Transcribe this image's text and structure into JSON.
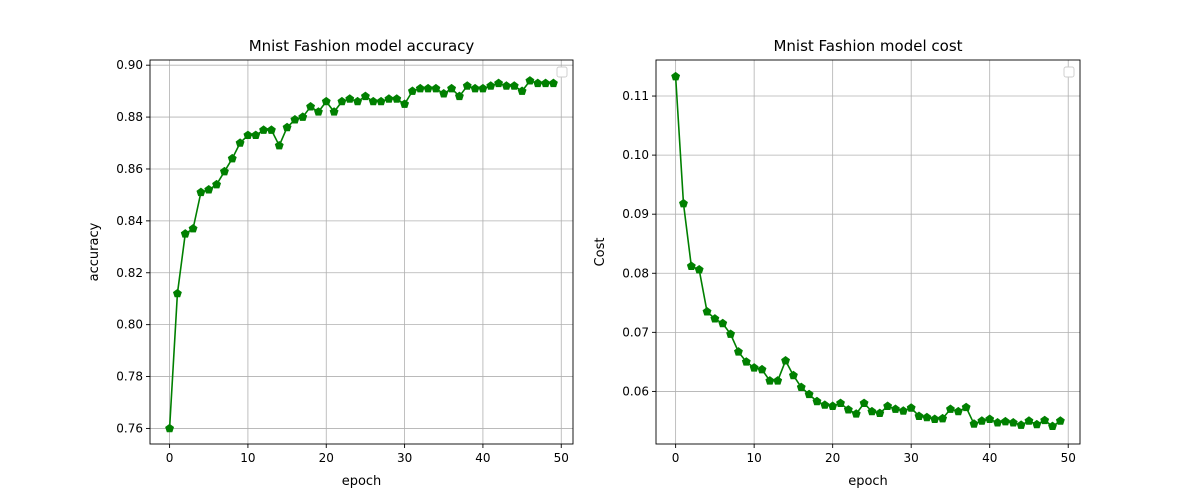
{
  "chart_data": [
    {
      "type": "line",
      "title": "Mnist Fashion model accuracy",
      "xlabel": "epoch",
      "ylabel": "accuracy",
      "xlim": [
        -2.5,
        51.5
      ],
      "ylim": [
        0.754,
        0.902
      ],
      "xticks": [
        0,
        10,
        20,
        30,
        40,
        50
      ],
      "yticks": [
        0.76,
        0.78,
        0.8,
        0.82,
        0.84,
        0.86,
        0.88,
        0.9
      ],
      "ytick_decimals": 2,
      "grid": true,
      "legend": "top-right",
      "marker": "pentagon",
      "color": "#008000",
      "series": [
        {
          "x": [
            0,
            1,
            2,
            3,
            4,
            5,
            6,
            7,
            8,
            9,
            10,
            11,
            12,
            13,
            14,
            15,
            16,
            17,
            18,
            19,
            20,
            21,
            22,
            23,
            24,
            25,
            26,
            27,
            28,
            29,
            30,
            31,
            32,
            33,
            34,
            35,
            36,
            37,
            38,
            39,
            40,
            41,
            42,
            43,
            44,
            45,
            46,
            47,
            48,
            49
          ],
          "values": [
            0.76,
            0.812,
            0.835,
            0.837,
            0.851,
            0.852,
            0.854,
            0.859,
            0.864,
            0.87,
            0.873,
            0.873,
            0.875,
            0.875,
            0.869,
            0.876,
            0.879,
            0.88,
            0.884,
            0.882,
            0.886,
            0.882,
            0.886,
            0.887,
            0.886,
            0.888,
            0.886,
            0.886,
            0.887,
            0.887,
            0.885,
            0.89,
            0.891,
            0.891,
            0.891,
            0.889,
            0.891,
            0.888,
            0.892,
            0.891,
            0.891,
            0.892,
            0.893,
            0.892,
            0.892,
            0.89,
            0.894,
            0.893,
            0.893,
            0.893
          ]
        }
      ]
    },
    {
      "type": "line",
      "title": "Mnist Fashion model cost",
      "xlabel": "epoch",
      "ylabel": "Cost",
      "xlim": [
        -2.5,
        51.5
      ],
      "ylim": [
        0.0511,
        0.1161
      ],
      "xticks": [
        0,
        10,
        20,
        30,
        40,
        50
      ],
      "yticks": [
        0.06,
        0.07,
        0.08,
        0.09,
        0.1,
        0.11
      ],
      "ytick_decimals": 2,
      "grid": true,
      "legend": "top-right",
      "marker": "pentagon",
      "color": "#008000",
      "series": [
        {
          "x": [
            0,
            1,
            2,
            3,
            4,
            5,
            6,
            7,
            8,
            9,
            10,
            11,
            12,
            13,
            14,
            15,
            16,
            17,
            18,
            19,
            20,
            21,
            22,
            23,
            24,
            25,
            26,
            27,
            28,
            29,
            30,
            31,
            32,
            33,
            34,
            35,
            36,
            37,
            38,
            39,
            40,
            41,
            42,
            43,
            44,
            45,
            46,
            47,
            48,
            49
          ],
          "values": [
            0.1133,
            0.0918,
            0.0812,
            0.0806,
            0.0735,
            0.0723,
            0.0715,
            0.0697,
            0.0667,
            0.065,
            0.064,
            0.0637,
            0.0618,
            0.0618,
            0.0652,
            0.0627,
            0.0607,
            0.0595,
            0.0583,
            0.0577,
            0.0575,
            0.058,
            0.0569,
            0.0562,
            0.058,
            0.0566,
            0.0563,
            0.0575,
            0.057,
            0.0567,
            0.0572,
            0.0558,
            0.0556,
            0.0553,
            0.0554,
            0.057,
            0.0566,
            0.0573,
            0.0545,
            0.055,
            0.0553,
            0.0547,
            0.0549,
            0.0547,
            0.0543,
            0.055,
            0.0544,
            0.0551,
            0.0541,
            0.055
          ]
        }
      ]
    }
  ]
}
